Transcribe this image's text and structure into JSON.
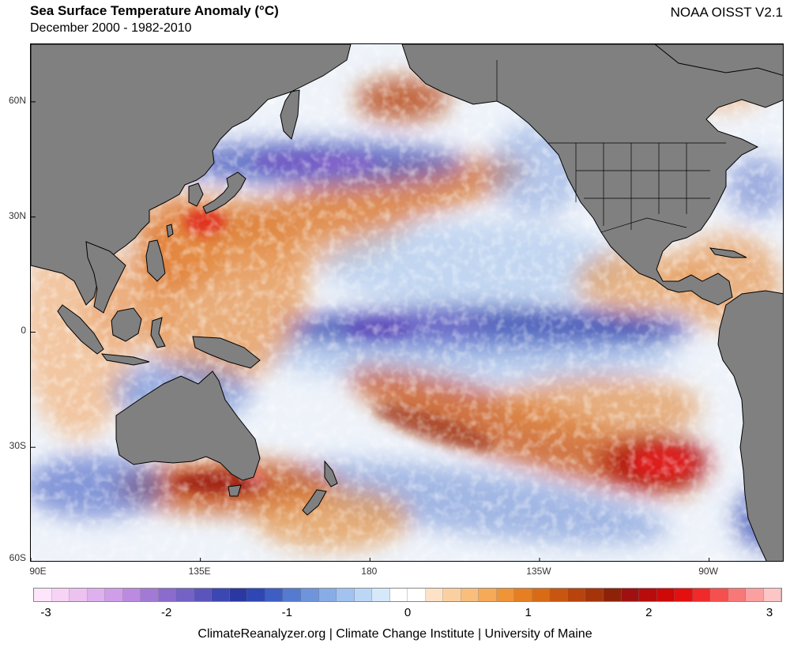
{
  "header": {
    "title": "Sea Surface Temperature Anomaly (°C)",
    "subtitle": "December 2000 - 1982-2010",
    "source": "NOAA OISST V2.1"
  },
  "map": {
    "projection": "equirectangular",
    "lon_range": [
      90,
      290
    ],
    "lat_range": [
      -60,
      75
    ],
    "y_ticks": [
      {
        "label": "60N",
        "lat": 60
      },
      {
        "label": "30N",
        "lat": 30
      },
      {
        "label": "0",
        "lat": 0
      },
      {
        "label": "30S",
        "lat": -30
      },
      {
        "label": "60S",
        "lat": -60
      }
    ],
    "x_ticks": [
      {
        "label": "90E",
        "lon": 90
      },
      {
        "label": "135E",
        "lon": 135
      },
      {
        "label": "180",
        "lon": 180
      },
      {
        "label": "135W",
        "lon": 225
      },
      {
        "label": "90W",
        "lon": 270
      }
    ],
    "colors": {
      "ocean_neutral": "#ffffff",
      "land": "#808080",
      "border": "#000000"
    }
  },
  "colorbar": {
    "min": -3,
    "max": 3,
    "colors": [
      "#fde6fb",
      "#f7d3f5",
      "#ecc2f1",
      "#deb0ee",
      "#cf9ee9",
      "#bb8ae1",
      "#a27ad6",
      "#8b6ccc",
      "#7462c4",
      "#5b55bb",
      "#3d47b2",
      "#2a38a3",
      "#2e47b4",
      "#3d5fc4",
      "#557bd1",
      "#6e94dc",
      "#88ade6",
      "#a2c3ef",
      "#bcd7f6",
      "#d6e9fb",
      "#ffffff",
      "#ffffff",
      "#fde2c8",
      "#fbd0a1",
      "#f9bd7c",
      "#f6a957",
      "#ef9437",
      "#e67e22",
      "#d96b16",
      "#c95610",
      "#b8430c",
      "#a6340a",
      "#8e2208",
      "#a01010",
      "#b80c0c",
      "#cf0808",
      "#e41010",
      "#f02a2a",
      "#f55050",
      "#f87878",
      "#fba0a0",
      "#fdc6c6"
    ],
    "tick_labels": [
      {
        "label": "-3",
        "value": -3
      },
      {
        "label": "-2",
        "value": -2
      },
      {
        "label": "-1",
        "value": -1
      },
      {
        "label": "0",
        "value": 0
      },
      {
        "label": "1",
        "value": 1
      },
      {
        "label": "2",
        "value": 2
      },
      {
        "label": "3",
        "value": 3
      }
    ]
  },
  "footer": {
    "credit": "ClimateReanalyzer.org | Climate Change Institute | University of Maine"
  }
}
